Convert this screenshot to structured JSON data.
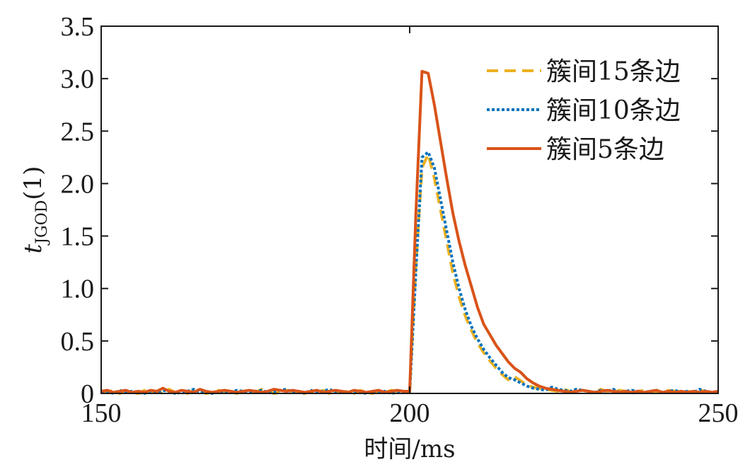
{
  "chart_data": {
    "type": "line",
    "xlabel": "时间/ms",
    "ylabel": {
      "main": "t",
      "subscript": "JGOD",
      "suffix": "(1)"
    },
    "xlim": [
      150,
      250
    ],
    "ylim": [
      0,
      3.5
    ],
    "xticks": [
      150,
      200,
      250
    ],
    "yticks": [
      0,
      0.5,
      1.0,
      1.5,
      2.0,
      2.5,
      3.0,
      3.5
    ],
    "ytick_labels": [
      "0",
      "0.5",
      "1.0",
      "1.5",
      "2.0",
      "2.5",
      "3.0",
      "3.5"
    ],
    "grid": false,
    "legend_position": "top-right",
    "series": [
      {
        "name": "簇间15条边",
        "color": "#EDB120",
        "style": "dashed",
        "x": [
          150,
          151,
          152,
          153,
          154,
          155,
          156,
          157,
          158,
          159,
          160,
          161,
          162,
          163,
          164,
          165,
          166,
          167,
          168,
          169,
          170,
          171,
          172,
          173,
          174,
          175,
          176,
          177,
          178,
          179,
          180,
          181,
          182,
          183,
          184,
          185,
          186,
          187,
          188,
          189,
          190,
          191,
          192,
          193,
          194,
          195,
          196,
          197,
          198,
          199,
          200,
          201,
          202,
          203,
          204,
          205,
          206,
          207,
          208,
          209,
          210,
          211,
          212,
          213,
          214,
          215,
          216,
          217,
          218,
          219,
          220,
          221,
          222,
          223,
          224,
          225,
          226,
          227,
          228,
          229,
          230,
          231,
          232,
          233,
          234,
          235,
          236,
          237,
          238,
          239,
          240,
          241,
          242,
          243,
          244,
          245,
          246,
          247,
          248,
          249,
          250
        ],
        "y": [
          0.02,
          0.01,
          0.03,
          0.0,
          0.02,
          0.01,
          0.0,
          0.03,
          0.01,
          0.02,
          0.0,
          0.04,
          0.01,
          0.02,
          0.0,
          0.03,
          0.02,
          0.0,
          0.01,
          0.03,
          0.02,
          0.01,
          0.0,
          0.02,
          0.03,
          0.01,
          0.04,
          0.02,
          0.0,
          0.01,
          0.03,
          0.02,
          0.01,
          0.0,
          0.02,
          0.01,
          0.03,
          0.0,
          0.02,
          0.01,
          0.02,
          0.0,
          0.03,
          0.01,
          0.0,
          0.02,
          0.01,
          0.03,
          0.02,
          0.01,
          0.02,
          1.2,
          2.15,
          2.28,
          2.05,
          1.75,
          1.45,
          1.15,
          0.92,
          0.74,
          0.6,
          0.48,
          0.39,
          0.31,
          0.24,
          0.18,
          0.13,
          0.16,
          0.12,
          0.08,
          0.06,
          0.05,
          0.04,
          0.03,
          0.02,
          0.04,
          0.02,
          0.01,
          0.03,
          0.02,
          0.01,
          0.04,
          0.02,
          0.01,
          0.03,
          0.02,
          0.0,
          0.02,
          0.03,
          0.01,
          0.02,
          0.01,
          0.03,
          0.02,
          0.0,
          0.02,
          0.01,
          0.03,
          0.02,
          0.01,
          0.02
        ]
      },
      {
        "name": "簇间10条边",
        "color": "#0072BD",
        "style": "dotted",
        "x": [
          150,
          151,
          152,
          153,
          154,
          155,
          156,
          157,
          158,
          159,
          160,
          161,
          162,
          163,
          164,
          165,
          166,
          167,
          168,
          169,
          170,
          171,
          172,
          173,
          174,
          175,
          176,
          177,
          178,
          179,
          180,
          181,
          182,
          183,
          184,
          185,
          186,
          187,
          188,
          189,
          190,
          191,
          192,
          193,
          194,
          195,
          196,
          197,
          198,
          199,
          200,
          201,
          202,
          203,
          204,
          205,
          206,
          207,
          208,
          209,
          210,
          211,
          212,
          213,
          214,
          215,
          216,
          217,
          218,
          219,
          220,
          221,
          222,
          223,
          224,
          225,
          226,
          227,
          228,
          229,
          230,
          231,
          232,
          233,
          234,
          235,
          236,
          237,
          238,
          239,
          240,
          241,
          242,
          243,
          244,
          245,
          246,
          247,
          248,
          249,
          250
        ],
        "y": [
          0.01,
          0.02,
          0.0,
          0.03,
          0.01,
          0.02,
          0.01,
          0.0,
          0.02,
          0.01,
          0.03,
          0.02,
          0.0,
          0.01,
          0.02,
          0.04,
          0.01,
          0.02,
          0.0,
          0.01,
          0.02,
          0.01,
          0.03,
          0.02,
          0.01,
          0.02,
          0.03,
          0.01,
          0.02,
          0.03,
          0.04,
          0.01,
          0.02,
          0.0,
          0.03,
          0.01,
          0.02,
          0.04,
          0.01,
          0.02,
          0.01,
          0.02,
          0.01,
          0.0,
          0.02,
          0.01,
          0.02,
          0.0,
          0.01,
          0.02,
          0.01,
          1.15,
          2.25,
          2.3,
          2.15,
          1.85,
          1.55,
          1.25,
          1.0,
          0.8,
          0.64,
          0.52,
          0.42,
          0.34,
          0.27,
          0.2,
          0.15,
          0.13,
          0.1,
          0.07,
          0.05,
          0.04,
          0.03,
          0.06,
          0.04,
          0.03,
          0.02,
          0.04,
          0.03,
          0.02,
          0.01,
          0.03,
          0.02,
          0.04,
          0.01,
          0.02,
          0.03,
          0.02,
          0.01,
          0.02,
          0.03,
          0.01,
          0.02,
          0.03,
          0.01,
          0.02,
          0.01,
          0.04,
          0.02,
          0.01,
          0.02
        ]
      },
      {
        "name": "簇间5条边",
        "color": "#D95319",
        "style": "solid",
        "x": [
          150,
          151,
          152,
          153,
          154,
          155,
          156,
          157,
          158,
          159,
          160,
          161,
          162,
          163,
          164,
          165,
          166,
          167,
          168,
          169,
          170,
          171,
          172,
          173,
          174,
          175,
          176,
          177,
          178,
          179,
          180,
          181,
          182,
          183,
          184,
          185,
          186,
          187,
          188,
          189,
          190,
          191,
          192,
          193,
          194,
          195,
          196,
          197,
          198,
          199,
          200,
          201,
          202,
          203,
          204,
          205,
          206,
          207,
          208,
          209,
          210,
          211,
          212,
          213,
          214,
          215,
          216,
          217,
          218,
          219,
          220,
          221,
          222,
          223,
          224,
          225,
          226,
          227,
          228,
          229,
          230,
          231,
          232,
          233,
          234,
          235,
          236,
          237,
          238,
          239,
          240,
          241,
          242,
          243,
          244,
          245,
          246,
          247,
          248,
          249,
          250
        ],
        "y": [
          0.02,
          0.03,
          0.01,
          0.02,
          0.03,
          0.01,
          0.02,
          0.01,
          0.03,
          0.02,
          0.05,
          0.02,
          0.01,
          0.03,
          0.02,
          0.01,
          0.04,
          0.02,
          0.01,
          0.02,
          0.03,
          0.02,
          0.01,
          0.02,
          0.03,
          0.02,
          0.01,
          0.02,
          0.04,
          0.03,
          0.02,
          0.03,
          0.02,
          0.01,
          0.02,
          0.03,
          0.01,
          0.02,
          0.03,
          0.02,
          0.01,
          0.03,
          0.02,
          0.01,
          0.02,
          0.03,
          0.01,
          0.02,
          0.03,
          0.02,
          0.02,
          1.7,
          3.07,
          3.05,
          2.75,
          2.4,
          2.05,
          1.72,
          1.45,
          1.22,
          1.02,
          0.82,
          0.66,
          0.56,
          0.46,
          0.38,
          0.3,
          0.24,
          0.2,
          0.14,
          0.1,
          0.07,
          0.05,
          0.04,
          0.03,
          0.02,
          0.01,
          0.02,
          0.03,
          0.02,
          0.01,
          0.02,
          0.03,
          0.02,
          0.01,
          0.02,
          0.01,
          0.02,
          0.01,
          0.02,
          0.03,
          0.01,
          0.02,
          0.01,
          0.02,
          0.01,
          0.02,
          0.01,
          0.02,
          0.01,
          0.02
        ]
      }
    ]
  }
}
